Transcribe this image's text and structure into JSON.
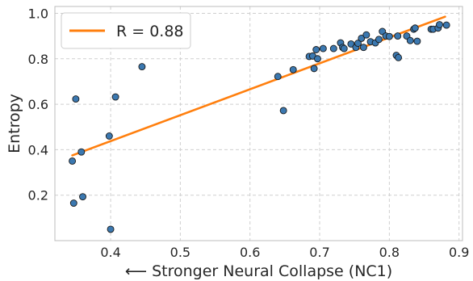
{
  "chart_data": {
    "type": "scatter",
    "title": "",
    "xlabel": "⟵ Stronger Neural Collapse (NC1)",
    "ylabel": "Entropy",
    "xlim": [
      0.32,
      0.905
    ],
    "ylim": [
      0.0,
      1.03
    ],
    "xticks": [
      0.4,
      0.5,
      0.6,
      0.7,
      0.8,
      0.9
    ],
    "xtick_labels": [
      "0.4",
      "0.5",
      "0.6",
      "0.7",
      "0.8",
      "0.9"
    ],
    "yticks": [
      0.2,
      0.4,
      0.6,
      0.8,
      1.0
    ],
    "ytick_labels": [
      "0.2",
      "0.4",
      "0.6",
      "0.8",
      "1.0"
    ],
    "grid": true,
    "legend_position": "top-left",
    "colors": {
      "points": "#3b78b0",
      "fit_line": "#ff7f0e"
    },
    "fit_line": {
      "label": "R = 0.88",
      "x": [
        0.345,
        0.88
      ],
      "y": [
        0.375,
        0.985
      ]
    },
    "series": [
      {
        "points": [
          [
            0.345,
            0.35
          ],
          [
            0.347,
            0.165
          ],
          [
            0.35,
            0.623
          ],
          [
            0.358,
            0.39
          ],
          [
            0.36,
            0.193
          ],
          [
            0.398,
            0.46
          ],
          [
            0.4,
            0.05
          ],
          [
            0.407,
            0.632
          ],
          [
            0.445,
            0.765
          ],
          [
            0.64,
            0.722
          ],
          [
            0.648,
            0.572
          ],
          [
            0.662,
            0.752
          ],
          [
            0.685,
            0.81
          ],
          [
            0.69,
            0.812
          ],
          [
            0.692,
            0.757
          ],
          [
            0.695,
            0.84
          ],
          [
            0.697,
            0.8
          ],
          [
            0.705,
            0.845
          ],
          [
            0.72,
            0.845
          ],
          [
            0.73,
            0.87
          ],
          [
            0.733,
            0.85
          ],
          [
            0.735,
            0.845
          ],
          [
            0.745,
            0.865
          ],
          [
            0.752,
            0.85
          ],
          [
            0.755,
            0.868
          ],
          [
            0.76,
            0.89
          ],
          [
            0.763,
            0.85
          ],
          [
            0.767,
            0.905
          ],
          [
            0.773,
            0.875
          ],
          [
            0.78,
            0.87
          ],
          [
            0.785,
            0.885
          ],
          [
            0.79,
            0.92
          ],
          [
            0.795,
            0.9
          ],
          [
            0.8,
            0.898
          ],
          [
            0.81,
            0.815
          ],
          [
            0.812,
            0.9
          ],
          [
            0.813,
            0.805
          ],
          [
            0.825,
            0.9
          ],
          [
            0.83,
            0.88
          ],
          [
            0.835,
            0.93
          ],
          [
            0.837,
            0.935
          ],
          [
            0.84,
            0.877
          ],
          [
            0.86,
            0.93
          ],
          [
            0.863,
            0.93
          ],
          [
            0.87,
            0.935
          ],
          [
            0.872,
            0.95
          ],
          [
            0.882,
            0.948
          ]
        ]
      }
    ]
  }
}
